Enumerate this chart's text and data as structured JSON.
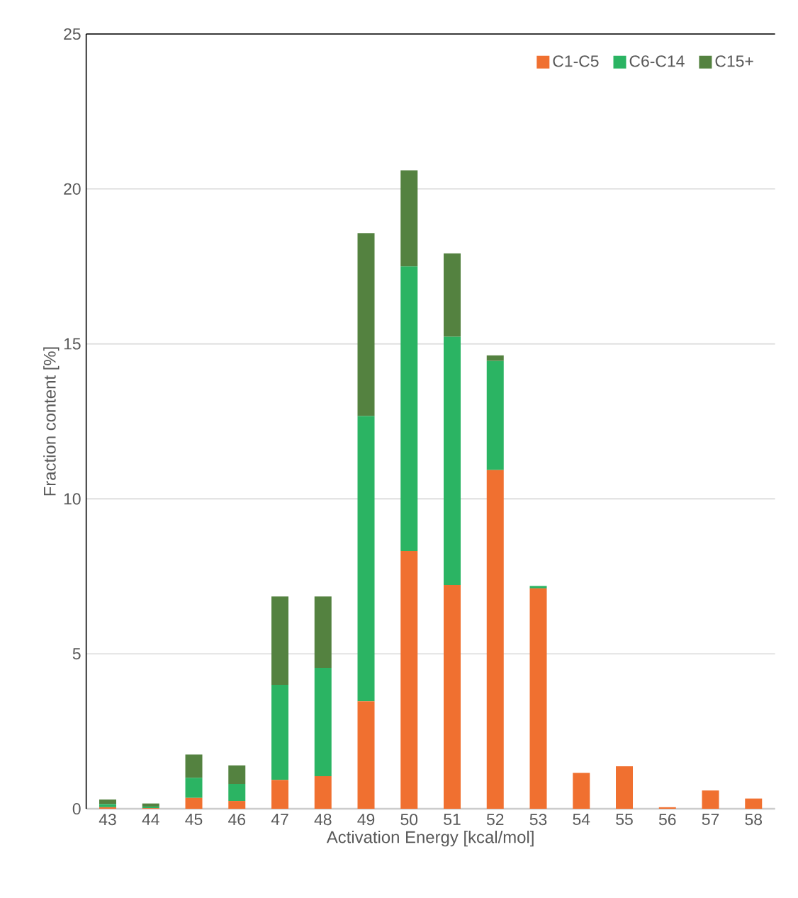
{
  "chart_data": {
    "type": "bar",
    "stacked": true,
    "xlabel": "Activation Energy [kcal/mol]",
    "ylabel": "Fraction content [%]",
    "categories": [
      "43",
      "44",
      "45",
      "46",
      "47",
      "48",
      "49",
      "50",
      "51",
      "52",
      "53",
      "54",
      "55",
      "56",
      "57",
      "58"
    ],
    "series": [
      {
        "name": "C1-C5",
        "color": "#f07030",
        "values": [
          0.05,
          0.02,
          0.35,
          0.25,
          0.93,
          1.05,
          3.47,
          8.32,
          7.22,
          10.93,
          7.11,
          1.16,
          1.37,
          0.05,
          0.59,
          0.33
        ]
      },
      {
        "name": "C6-C14",
        "color": "#2bb463",
        "values": [
          0.1,
          0.05,
          0.65,
          0.55,
          3.07,
          3.5,
          9.2,
          9.18,
          8.01,
          3.52,
          0.08,
          0,
          0,
          0,
          0,
          0
        ]
      },
      {
        "name": "C15+",
        "color": "#548240",
        "values": [
          0.15,
          0.1,
          0.75,
          0.6,
          2.85,
          2.3,
          5.9,
          3.1,
          2.69,
          0.18,
          0,
          0,
          0,
          0,
          0,
          0
        ]
      }
    ],
    "ylim": [
      0,
      25
    ],
    "yticks": [
      0,
      5,
      10,
      15,
      20,
      25
    ],
    "grid": "y",
    "legend": "top right"
  }
}
